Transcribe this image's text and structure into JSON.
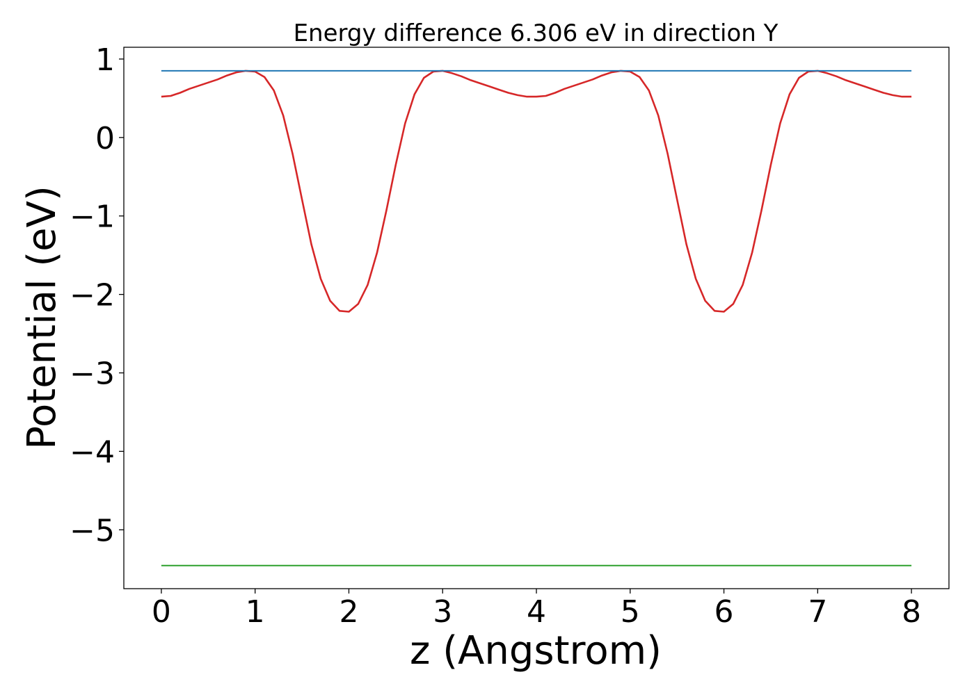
{
  "chart_data": {
    "type": "line",
    "title": "Energy difference 6.306 eV in direction Y",
    "xlabel": "z (Angstrom)",
    "ylabel": "Potential (eV)",
    "xlim": [
      -0.4,
      8.4
    ],
    "ylim": [
      -5.75,
      1.15
    ],
    "xticks": [
      "0",
      "1",
      "2",
      "3",
      "4",
      "5",
      "6",
      "7",
      "8"
    ],
    "yticks": [
      "1",
      "0",
      "−1",
      "−2",
      "−3",
      "−4",
      "−5"
    ],
    "grid": false,
    "legend": "none",
    "series": [
      {
        "color": "#d62728",
        "x": [
          0.0,
          0.1,
          0.2,
          0.3,
          0.4,
          0.5,
          0.6,
          0.7,
          0.8,
          0.9,
          1.0,
          1.1,
          1.2,
          1.3,
          1.4,
          1.5,
          1.6,
          1.7,
          1.8,
          1.9,
          2.0,
          2.1,
          2.2,
          2.3,
          2.4,
          2.5,
          2.6,
          2.7,
          2.8,
          2.9,
          3.0,
          3.1,
          3.2,
          3.3,
          3.4,
          3.5,
          3.6,
          3.7,
          3.8,
          3.9,
          4.0,
          4.1,
          4.2,
          4.3,
          4.4,
          4.5,
          4.6,
          4.7,
          4.8,
          4.9,
          5.0,
          5.1,
          5.2,
          5.3,
          5.4,
          5.5,
          5.6,
          5.7,
          5.8,
          5.9,
          6.0,
          6.1,
          6.2,
          6.3,
          6.4,
          6.5,
          6.6,
          6.7,
          6.8,
          6.9,
          7.0,
          7.1,
          7.2,
          7.3,
          7.4,
          7.5,
          7.6,
          7.7,
          7.8,
          7.9,
          8.0
        ],
        "y": [
          0.52,
          0.53,
          0.57,
          0.62,
          0.66,
          0.7,
          0.74,
          0.79,
          0.83,
          0.85,
          0.84,
          0.77,
          0.6,
          0.28,
          -0.21,
          -0.79,
          -1.36,
          -1.8,
          -2.08,
          -2.21,
          -2.22,
          -2.12,
          -1.88,
          -1.47,
          -0.93,
          -0.35,
          0.18,
          0.55,
          0.76,
          0.84,
          0.85,
          0.82,
          0.78,
          0.73,
          0.69,
          0.65,
          0.61,
          0.57,
          0.54,
          0.52,
          0.52,
          0.53,
          0.57,
          0.62,
          0.66,
          0.7,
          0.74,
          0.79,
          0.83,
          0.85,
          0.84,
          0.77,
          0.6,
          0.28,
          -0.21,
          -0.79,
          -1.36,
          -1.8,
          -2.08,
          -2.21,
          -2.22,
          -2.12,
          -1.88,
          -1.47,
          -0.93,
          -0.35,
          0.18,
          0.55,
          0.76,
          0.84,
          0.85,
          0.82,
          0.78,
          0.73,
          0.69,
          0.65,
          0.61,
          0.57,
          0.54,
          0.52,
          0.52
        ]
      },
      {
        "color": "#1f77b4",
        "x": [
          0,
          8
        ],
        "y": [
          0.85,
          0.85
        ]
      },
      {
        "color": "#2ca02c",
        "x": [
          0,
          8
        ],
        "y": [
          -5.456,
          -5.456
        ]
      }
    ]
  }
}
